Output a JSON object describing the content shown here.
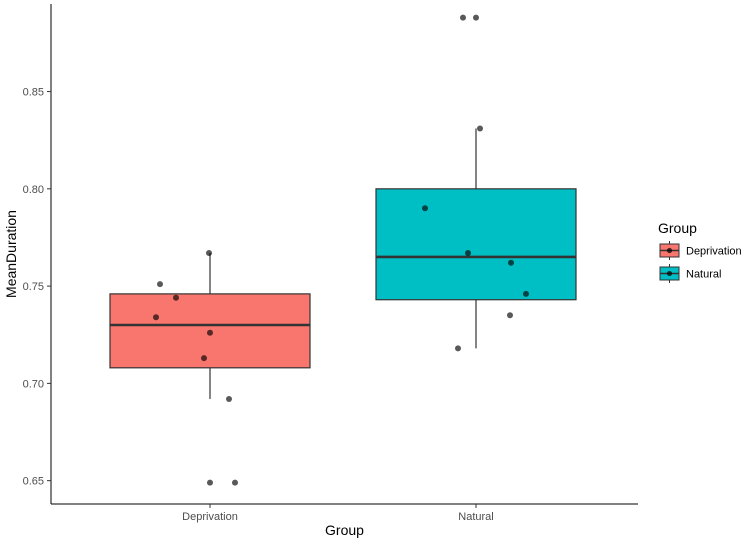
{
  "chart_data": {
    "type": "boxplot",
    "xlabel": "Group",
    "ylabel": "MeanDuration",
    "categories": [
      "Deprivation",
      "Natural"
    ],
    "ylim": [
      0.638,
      0.895
    ],
    "yticks": [
      0.65,
      0.7,
      0.75,
      0.8,
      0.85
    ],
    "ytick_labels": [
      "0.65",
      "0.70",
      "0.75",
      "0.80",
      "0.85"
    ],
    "grid": false,
    "legend": {
      "title": "Group",
      "placement": "right",
      "entries": [
        "Deprivation",
        "Natural"
      ]
    },
    "series": [
      {
        "category": "Deprivation",
        "color": "#F8766D",
        "stats": {
          "min": 0.692,
          "q1": 0.708,
          "median": 0.73,
          "q3": 0.746,
          "max": 0.767
        },
        "points": [
          {
            "dx": -0.01,
            "y": 0.767
          },
          {
            "dx": -0.5,
            "y": 0.751
          },
          {
            "dx": -0.34,
            "y": 0.744
          },
          {
            "dx": -0.54,
            "y": 0.734
          },
          {
            "dx": 0.0,
            "y": 0.726
          },
          {
            "dx": -0.06,
            "y": 0.713
          },
          {
            "dx": 0.19,
            "y": 0.692
          },
          {
            "dx": 0.0,
            "y": 0.649
          },
          {
            "dx": 0.25,
            "y": 0.649
          }
        ]
      },
      {
        "category": "Natural",
        "color": "#00BFC4",
        "stats": {
          "min": 0.718,
          "q1": 0.743,
          "median": 0.765,
          "q3": 0.8,
          "max": 0.831
        },
        "points": [
          {
            "dx": -0.13,
            "y": 0.888
          },
          {
            "dx": 0.0,
            "y": 0.888
          },
          {
            "dx": 0.04,
            "y": 0.831
          },
          {
            "dx": -0.51,
            "y": 0.79
          },
          {
            "dx": -0.08,
            "y": 0.767
          },
          {
            "dx": 0.35,
            "y": 0.762
          },
          {
            "dx": 0.5,
            "y": 0.746
          },
          {
            "dx": 0.34,
            "y": 0.735
          },
          {
            "dx": -0.18,
            "y": 0.718
          }
        ]
      }
    ]
  }
}
